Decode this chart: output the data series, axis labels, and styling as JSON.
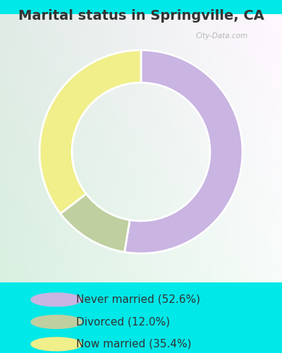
{
  "title": "Marital status in Springville, CA",
  "slices": [
    52.6,
    12.0,
    35.4
  ],
  "labels": [
    "Never married (52.6%)",
    "Divorced (12.0%)",
    "Now married (35.4%)"
  ],
  "colors": [
    "#c9b4e2",
    "#bfcfa0",
    "#f0ef8a"
  ],
  "legend_marker_colors": [
    "#c9b4e2",
    "#bfcfa0",
    "#f0ef8a"
  ],
  "background_outer": "#00e8e8",
  "title_fontsize": 14,
  "legend_fontsize": 11,
  "donut_width": 0.32,
  "start_angle": 90,
  "title_color": "#333333"
}
